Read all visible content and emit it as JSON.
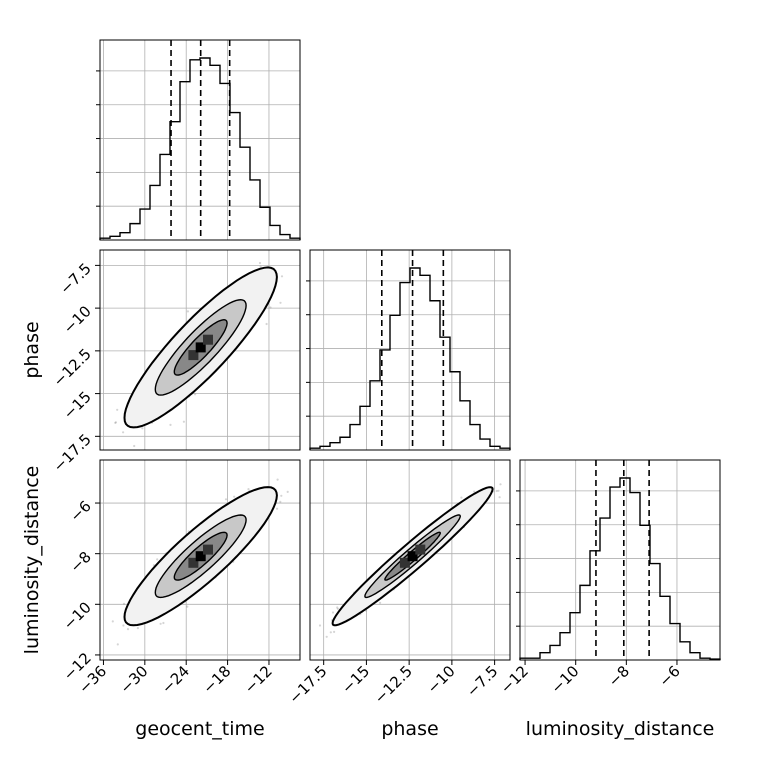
{
  "chart_data": {
    "type": "corner",
    "parameters": [
      {
        "key": "geocent_time",
        "label": "geocent_time",
        "ticks": [
          -36,
          -30,
          -24,
          -18,
          -12
        ],
        "range": [
          -36.5,
          -7.5
        ],
        "quantiles": [
          -26.2,
          -21.9,
          -17.7
        ]
      },
      {
        "key": "phase",
        "label": "phase",
        "ticks": [
          -17.5,
          -15.0,
          -12.5,
          -10.0,
          -7.5
        ],
        "range": [
          -18.3,
          -6.6
        ],
        "quantiles": [
          -14.1,
          -12.3,
          -10.5
        ]
      },
      {
        "key": "luminosity_distance",
        "label": "luminosity_distance",
        "ticks": [
          -12,
          -10,
          -8,
          -6
        ],
        "range": [
          -12.2,
          -4.3
        ],
        "quantiles": [
          -9.2,
          -8.1,
          -7.1
        ]
      }
    ],
    "histograms": {
      "geocent_time": [
        0.01,
        0.02,
        0.04,
        0.09,
        0.17,
        0.3,
        0.47,
        0.65,
        0.87,
        0.99,
        1.0,
        0.96,
        0.86,
        0.7,
        0.51,
        0.33,
        0.18,
        0.08,
        0.03,
        0.01
      ],
      "phase": [
        0.01,
        0.02,
        0.04,
        0.07,
        0.14,
        0.24,
        0.38,
        0.55,
        0.74,
        0.92,
        1.0,
        0.96,
        0.82,
        0.62,
        0.43,
        0.27,
        0.14,
        0.06,
        0.02,
        0.01
      ],
      "luminosity_distance": [
        0.01,
        0.01,
        0.04,
        0.08,
        0.15,
        0.26,
        0.41,
        0.6,
        0.78,
        0.95,
        1.0,
        0.92,
        0.74,
        0.53,
        0.35,
        0.2,
        0.1,
        0.04,
        0.01,
        0.005
      ]
    },
    "pairs": [
      {
        "x": "geocent_time",
        "y": "phase"
      },
      {
        "x": "geocent_time",
        "y": "luminosity_distance"
      },
      {
        "x": "phase",
        "y": "luminosity_distance"
      }
    ],
    "contour_levels": [
      0.39,
      0.86,
      0.99
    ],
    "grid": true,
    "colors": {
      "line": "#000000",
      "grid": "#b0b0b0",
      "scatter": "#888888"
    }
  }
}
